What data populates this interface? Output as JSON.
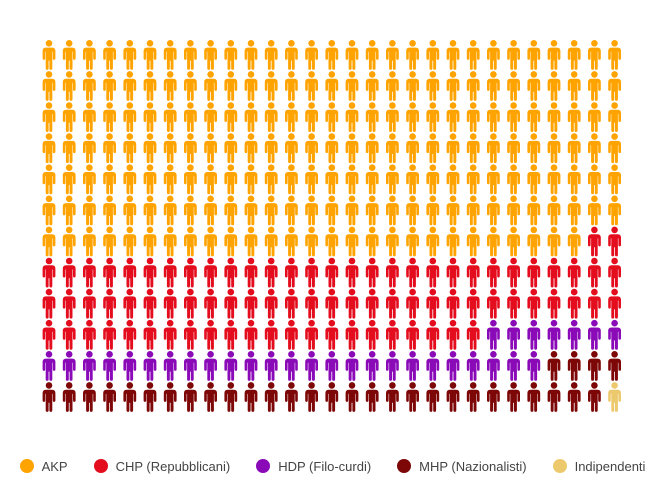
{
  "chart_data": {
    "type": "pictogram",
    "unit": "seat",
    "columns": 29,
    "rows": 12,
    "order": "row-major",
    "series": [
      {
        "name": "AKP",
        "value": 201,
        "color": "#ffa300"
      },
      {
        "name": "CHP (Repubblicani)",
        "value": 82,
        "color": "#e40d1e"
      },
      {
        "name": "HDP (Filo-curdi)",
        "value": 32,
        "color": "#8a0ab8"
      },
      {
        "name": "MHP (Nazionalisti)",
        "value": 32,
        "color": "#7d0606"
      },
      {
        "name": "Indipendenti",
        "value": 1,
        "color": "#edc96e"
      }
    ],
    "legend_position": "bottom"
  }
}
